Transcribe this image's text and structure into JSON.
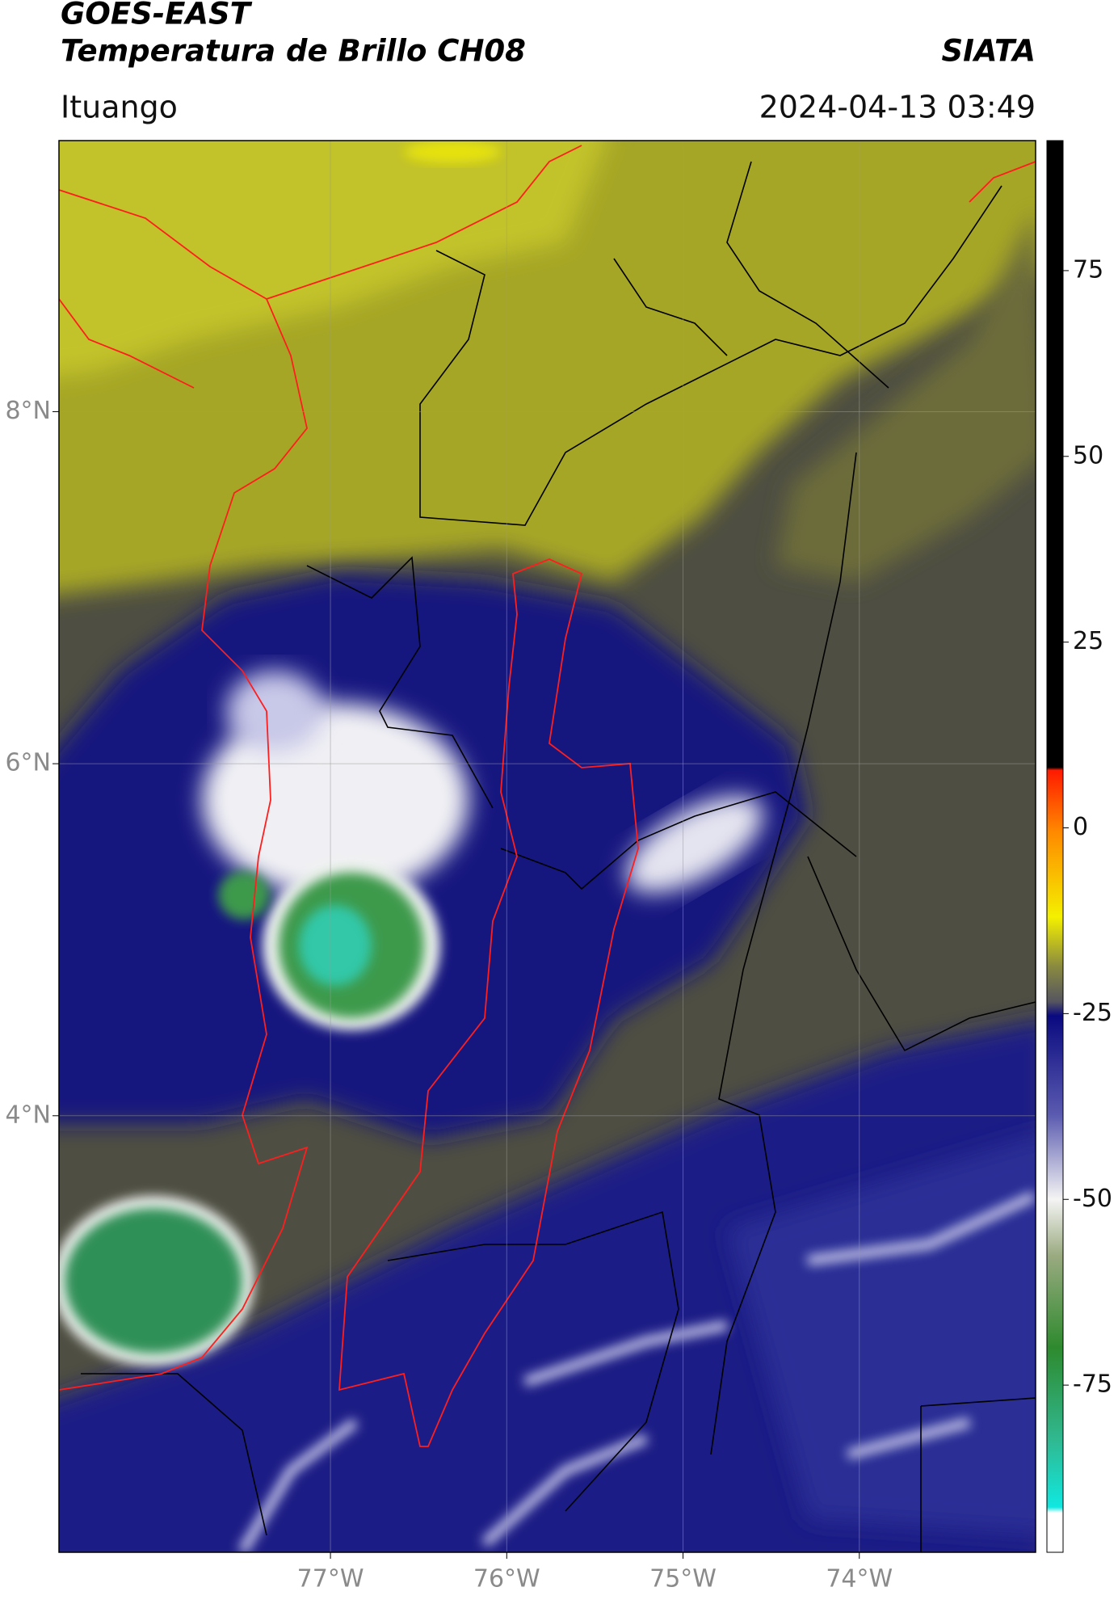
{
  "header": {
    "title": "GOES-EAST",
    "subtitle": "Temperatura de Brillo CH08",
    "source": "SIATA",
    "location": "Ituango",
    "datetime": "2024-04-13 03:49"
  },
  "map": {
    "xlim": [
      -78.54,
      -73
    ],
    "ylim": [
      1.52,
      9.54
    ],
    "xticks": [
      {
        "value": -77,
        "label": "77°W"
      },
      {
        "value": -76,
        "label": "76°W"
      },
      {
        "value": -75,
        "label": "75°W"
      },
      {
        "value": -74,
        "label": "74°W"
      }
    ],
    "yticks": [
      {
        "value": 4,
        "label": "4°N"
      },
      {
        "value": 6,
        "label": "6°N"
      },
      {
        "value": 8,
        "label": "8°N"
      }
    ],
    "grid": true
  },
  "colorbar": {
    "lim": [
      -97.5,
      92.5
    ],
    "ticks": [
      -75,
      -50,
      -25,
      0,
      25,
      50,
      75
    ]
  }
}
